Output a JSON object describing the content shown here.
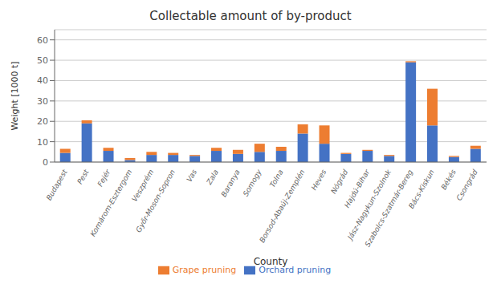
{
  "chart_data": {
    "type": "bar",
    "stacked": true,
    "title": "Collectable amount of by-product",
    "xlabel": "County",
    "ylabel": "Weight [1000 t]",
    "categories": [
      "Budapest",
      "Pest",
      "Fejér",
      "Komárom-Esztergom",
      "Veszprém",
      "Győr-Moson-Sopron",
      "Vas",
      "Zala",
      "Baranya",
      "Somogy",
      "Tolna",
      "Borsod-Abaúj-Zemplén",
      "Heves",
      "Nógrád",
      "Hajdú-Bihar",
      "Jász-Nagykun-Szolnok",
      "Szabolcs-Szatmár-Bereg",
      "Bács-Kiskun",
      "Békés",
      "Csongrád"
    ],
    "series": [
      {
        "name": "Orchard pruning",
        "color": "#4472C4",
        "values": [
          4.5,
          19.0,
          5.5,
          1.0,
          3.5,
          3.5,
          3.0,
          5.5,
          4.0,
          5.0,
          5.5,
          14.0,
          9.0,
          4.0,
          5.5,
          3.0,
          49.0,
          18.0,
          2.5,
          6.5
        ]
      },
      {
        "name": "Grape pruning",
        "color": "#ED7D31",
        "values": [
          2.0,
          1.5,
          1.5,
          1.0,
          1.5,
          1.0,
          0.5,
          1.5,
          2.0,
          4.0,
          2.0,
          4.5,
          9.0,
          0.5,
          0.5,
          0.5,
          0.5,
          18.0,
          0.5,
          1.5
        ]
      }
    ],
    "ylim": [
      0,
      65
    ],
    "yticks": [
      0,
      10,
      20,
      30,
      40,
      50,
      60
    ],
    "grid": true,
    "legend": "bottom"
  }
}
